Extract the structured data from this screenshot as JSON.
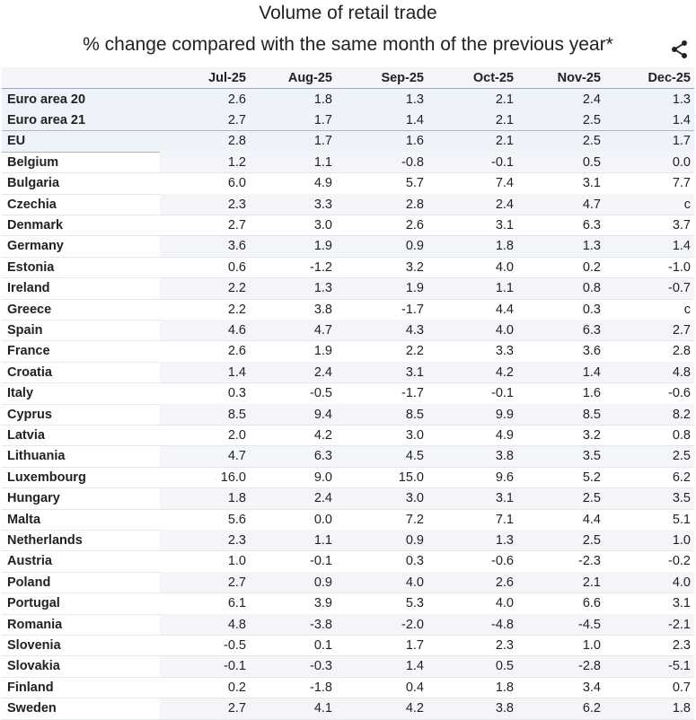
{
  "header": {
    "title": "Volume of retail trade",
    "subtitle": "% change compared with the same month of the previous year*"
  },
  "table": {
    "columns": [
      "Jul-25",
      "Aug-25",
      "Sep-25",
      "Oct-25",
      "Nov-25",
      "Dec-25"
    ],
    "rows": [
      [
        "Euro area 20",
        "2.6",
        "1.8",
        "1.3",
        "2.1",
        "2.4",
        "1.3"
      ],
      [
        "Euro area 21",
        "2.7",
        "1.7",
        "1.4",
        "2.1",
        "2.5",
        "1.4"
      ],
      [
        "EU",
        "2.8",
        "1.7",
        "1.6",
        "2.1",
        "2.5",
        "1.7"
      ],
      [
        "Belgium",
        "1.2",
        "1.1",
        "-0.8",
        "-0.1",
        "0.5",
        "0.0"
      ],
      [
        "Bulgaria",
        "6.0",
        "4.9",
        "5.7",
        "7.4",
        "3.1",
        "7.7"
      ],
      [
        "Czechia",
        "2.3",
        "3.3",
        "2.8",
        "2.4",
        "4.7",
        "c"
      ],
      [
        "Denmark",
        "2.7",
        "3.0",
        "2.6",
        "3.1",
        "6.3",
        "3.7"
      ],
      [
        "Germany",
        "3.6",
        "1.9",
        "0.9",
        "1.8",
        "1.3",
        "1.4"
      ],
      [
        "Estonia",
        "0.6",
        "-1.2",
        "3.2",
        "4.0",
        "0.2",
        "-1.0"
      ],
      [
        "Ireland",
        "2.2",
        "1.3",
        "1.9",
        "1.1",
        "0.8",
        "-0.7"
      ],
      [
        "Greece",
        "2.2",
        "3.8",
        "-1.7",
        "4.4",
        "0.3",
        "c"
      ],
      [
        "Spain",
        "4.6",
        "4.7",
        "4.3",
        "4.0",
        "6.3",
        "2.7"
      ],
      [
        "France",
        "2.6",
        "1.9",
        "2.2",
        "3.3",
        "3.6",
        "2.8"
      ],
      [
        "Croatia",
        "1.4",
        "2.4",
        "3.1",
        "4.2",
        "1.4",
        "4.8"
      ],
      [
        "Italy",
        "0.3",
        "-0.5",
        "-1.7",
        "-0.1",
        "1.6",
        "-0.6"
      ],
      [
        "Cyprus",
        "8.5",
        "9.4",
        "8.5",
        "9.9",
        "8.5",
        "8.2"
      ],
      [
        "Latvia",
        "2.0",
        "4.2",
        "3.0",
        "4.9",
        "3.2",
        "0.8"
      ],
      [
        "Lithuania",
        "4.7",
        "6.3",
        "4.5",
        "3.8",
        "3.5",
        "2.5"
      ],
      [
        "Luxembourg",
        "16.0",
        "9.0",
        "15.0",
        "9.6",
        "5.2",
        "6.2"
      ],
      [
        "Hungary",
        "1.8",
        "2.4",
        "3.0",
        "3.1",
        "2.5",
        "3.5"
      ],
      [
        "Malta",
        "5.6",
        "0.0",
        "7.2",
        "7.1",
        "4.4",
        "5.1"
      ],
      [
        "Netherlands",
        "2.3",
        "1.1",
        "0.9",
        "1.3",
        "2.5",
        "1.0"
      ],
      [
        "Austria",
        "1.0",
        "-0.1",
        "0.3",
        "-0.6",
        "-2.3",
        "-0.2"
      ],
      [
        "Poland",
        "2.7",
        "0.9",
        "4.0",
        "2.6",
        "2.1",
        "4.0"
      ],
      [
        "Portugal",
        "6.1",
        "3.9",
        "5.3",
        "4.0",
        "6.6",
        "3.1"
      ],
      [
        "Romania",
        "4.8",
        "-3.8",
        "-2.0",
        "-4.8",
        "-4.5",
        "-2.1"
      ],
      [
        "Slovenia",
        "-0.5",
        "0.1",
        "1.7",
        "2.3",
        "1.0",
        "2.3"
      ],
      [
        "Slovakia",
        "-0.1",
        "-0.3",
        "1.4",
        "0.5",
        "-2.8",
        "-5.1"
      ],
      [
        "Finland",
        "0.2",
        "-1.8",
        "0.4",
        "1.8",
        "3.4",
        "0.7"
      ],
      [
        "Sweden",
        "2.7",
        "4.1",
        "4.2",
        "3.8",
        "6.2",
        "1.8"
      ]
    ]
  }
}
